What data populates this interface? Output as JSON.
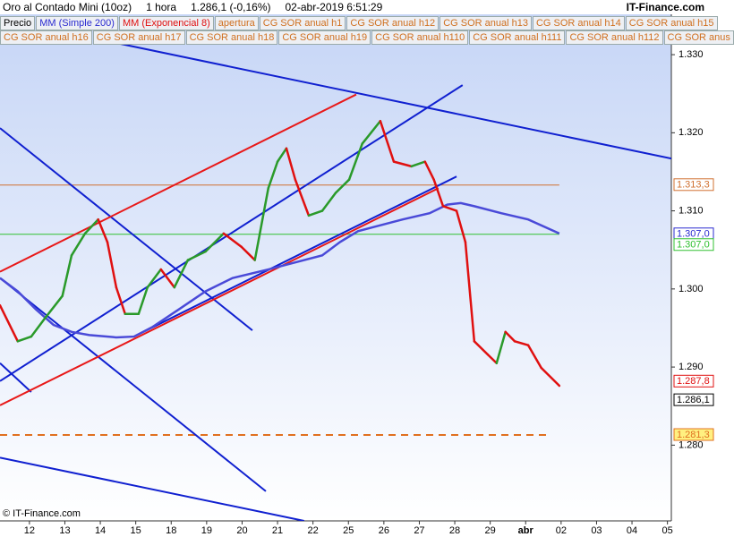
{
  "header": {
    "instrument": "Oro al Contado Mini (10oz)",
    "period": "1 hora",
    "quote": "1.286,1 (-0,16%)",
    "datetime": "02-abr-2019 6:51:29",
    "brand": "IT-Finance.com",
    "buttons_row1": [
      "Precio",
      "MM (Simple 200)",
      "MM (Exponencial 8)",
      "apertura",
      "CG SOR anual h1",
      "CG SOR anual h12",
      "CG SOR anual h13",
      "CG SOR anual h14",
      "CG SOR anual h15"
    ],
    "buttons_row2": [
      "CG SOR anual h16",
      "CG SOR anual h17",
      "CG SOR anual h18",
      "CG SOR anual h19",
      "CG SOR anual h110",
      "CG SOR anual h111",
      "CG SOR anual h112",
      "CG SOR anus"
    ]
  },
  "footer": "© IT-Finance.com",
  "chart_data": {
    "type": "line",
    "xlim": [
      -0.83,
      18.11
    ],
    "xticks": [
      {
        "value": 0,
        "label": "12"
      },
      {
        "value": 1,
        "label": "13"
      },
      {
        "value": 2,
        "label": "14"
      },
      {
        "value": 3,
        "label": "15"
      },
      {
        "value": 4,
        "label": "18"
      },
      {
        "value": 5,
        "label": "19"
      },
      {
        "value": 6,
        "label": "20"
      },
      {
        "value": 7,
        "label": "21"
      },
      {
        "value": 8,
        "label": "22"
      },
      {
        "value": 9,
        "label": "25"
      },
      {
        "value": 10,
        "label": "26"
      },
      {
        "value": 11,
        "label": "27"
      },
      {
        "value": 12,
        "label": "28"
      },
      {
        "value": 13,
        "label": "29"
      },
      {
        "value": 14,
        "label": "abr"
      },
      {
        "value": 15,
        "label": "02"
      },
      {
        "value": 16,
        "label": "03"
      },
      {
        "value": 17,
        "label": "04"
      },
      {
        "value": 18,
        "label": "05"
      }
    ],
    "ylim": [
      1.2703,
      1.337
    ],
    "yticks": [
      {
        "value": 1.28,
        "label": "1.280"
      },
      {
        "value": 1.29,
        "label": "1.290"
      },
      {
        "value": 1.3,
        "label": "1.300"
      },
      {
        "value": 1.31,
        "label": "1.310"
      },
      {
        "value": 1.32,
        "label": "1.320"
      },
      {
        "value": 1.33,
        "label": "1.330"
      }
    ],
    "series": [
      {
        "name": "MM (Simple 200)",
        "color": "#4a4ad8",
        "x": [
          -0.83,
          -0.33,
          0.18,
          0.68,
          1.19,
          1.69,
          2.45,
          2.95,
          3.46,
          4.22,
          4.97,
          5.73,
          6.74,
          7.5,
          8.26,
          8.76,
          9.27,
          9.77,
          10.53,
          11.29,
          11.79,
          12.17,
          12.55,
          13.31,
          14.07,
          14.95
        ],
        "values": [
          1.3014,
          1.2997,
          1.2974,
          1.2954,
          1.2945,
          1.2941,
          1.2938,
          1.2939,
          1.2951,
          1.2974,
          1.2997,
          1.3014,
          1.3025,
          1.3034,
          1.3043,
          1.306,
          1.3074,
          1.308,
          1.3089,
          1.3097,
          1.3108,
          1.311,
          1.3106,
          1.3097,
          1.3089,
          1.3071
        ]
      },
      {
        "name": "MM (Exponencial 8)",
        "color": "#e01010",
        "color_up": "#2a9a2a",
        "x": [
          -0.83,
          -0.33,
          0.05,
          0.43,
          0.93,
          1.19,
          1.57,
          1.94,
          2.2,
          2.45,
          2.7,
          3.08,
          3.33,
          3.71,
          4.09,
          4.47,
          4.97,
          5.48,
          5.98,
          6.36,
          6.74,
          7.0,
          7.25,
          7.5,
          7.88,
          8.26,
          8.64,
          9.02,
          9.39,
          9.9,
          10.28,
          10.78,
          11.16,
          11.41,
          11.67,
          12.05,
          12.3,
          12.55,
          12.93,
          13.18,
          13.43,
          13.69,
          14.07,
          14.44,
          14.95
        ],
        "values": [
          1.2979,
          1.2933,
          1.2939,
          1.2962,
          1.2991,
          1.3043,
          1.3071,
          1.3089,
          1.306,
          1.3002,
          1.2968,
          1.2968,
          1.3002,
          1.3025,
          1.3002,
          1.3037,
          1.3048,
          1.3071,
          1.3054,
          1.3037,
          1.3129,
          1.3163,
          1.318,
          1.314,
          1.3094,
          1.31,
          1.3123,
          1.314,
          1.3186,
          1.3215,
          1.3163,
          1.3157,
          1.3163,
          1.314,
          1.3106,
          1.31,
          1.306,
          1.2933,
          1.2916,
          1.2905,
          1.2945,
          1.2933,
          1.2928,
          1.2899,
          1.2876
        ]
      }
    ],
    "drawings": [
      {
        "color": "#1020d0",
        "x": [
          2.45,
          18.11
        ],
        "y": [
          1.3315,
          1.3167
        ]
      },
      {
        "color": "#1020d0",
        "x": [
          -0.83,
          12.22
        ],
        "y": [
          1.2882,
          1.3261
        ]
      },
      {
        "color": "#1020d0",
        "x": [
          2.95,
          12.05
        ],
        "y": [
          1.2939,
          1.3144
        ]
      },
      {
        "color": "#1020d0",
        "x": [
          -0.83,
          6.29
        ],
        "y": [
          1.3206,
          1.2947
        ]
      },
      {
        "color": "#1020d0",
        "x": [
          -0.83,
          6.67
        ],
        "y": [
          1.3014,
          1.2741
        ]
      },
      {
        "color": "#1020d0",
        "x": [
          -0.83,
          0.05
        ],
        "y": [
          1.2905,
          1.2868
        ]
      },
      {
        "color": "#1020d0",
        "x": [
          -0.83,
          7.75
        ],
        "y": [
          1.2784,
          1.2703
        ]
      },
      {
        "color": "#e81818",
        "x": [
          -0.83,
          9.22
        ],
        "y": [
          1.3022,
          1.3249
        ]
      },
      {
        "color": "#e81818",
        "x": [
          -0.83,
          11.54
        ],
        "y": [
          1.2851,
          1.3129
        ]
      }
    ],
    "levels": [
      {
        "value": 1.3133,
        "label": "1.313,3",
        "color": "#d07030",
        "fill": "#ffffff",
        "line_end": 14.95,
        "dashed": false
      },
      {
        "value": 1.307,
        "label": "1.307,0",
        "color": "#2a2ad0",
        "fill": "#ffffff"
      },
      {
        "value": 1.307,
        "label": "1.307,0",
        "color": "#30c030",
        "fill": "#ffffff",
        "line_end": 14.95,
        "dashed": false
      },
      {
        "value": 1.2878,
        "label": "1.287,8",
        "color": "#e01010",
        "fill": "#ffffff"
      },
      {
        "value": 1.2861,
        "label": "1.286,1",
        "color": "#000000",
        "fill": "#ffffff"
      },
      {
        "value": 1.2813,
        "label": "1.281,3",
        "color": "#e07020",
        "fill": "#fff080",
        "line_end": 14.62,
        "dashed": true
      }
    ]
  }
}
